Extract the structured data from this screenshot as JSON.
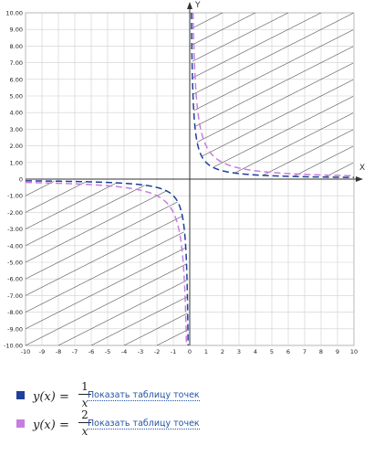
{
  "chart_data": {
    "type": "line",
    "xlabel": "X",
    "ylabel": "Y",
    "xlim": [
      -10,
      10
    ],
    "ylim": [
      -10,
      10
    ],
    "x_ticks": [
      "-10",
      "-9",
      "-8",
      "-7",
      "-6",
      "-5",
      "-4",
      "-3",
      "-2",
      "-1",
      "0",
      "1",
      "2",
      "3",
      "4",
      "5",
      "6",
      "7",
      "8",
      "9",
      "10"
    ],
    "y_ticks": [
      "10.00",
      "9.00",
      "8.00",
      "7.00",
      "6.00",
      "5.00",
      "4.00",
      "3.00",
      "2.00",
      "1.00",
      "0",
      "-1.00",
      "-2.00",
      "-3.00",
      "-4.00",
      "-5.00",
      "-6.00",
      "-7.00",
      "-8.00",
      "-9.00",
      "-10.00"
    ],
    "grid": true,
    "hatching": "diagonal lines in quadrants I and III",
    "series": [
      {
        "name": "y(x) = 1/x",
        "formula": "1/x",
        "k": 1,
        "color": "#1f3f99",
        "style": "dashed"
      },
      {
        "name": "y(x) = 2/x",
        "formula": "2/x",
        "k": 2,
        "color": "#c77de0",
        "style": "dashed"
      }
    ]
  },
  "legend": [
    {
      "lhs": "y(x) =",
      "numerator": "1",
      "denominator": "x",
      "color": "#1f3f99",
      "link": "Показать таблицу точек"
    },
    {
      "lhs": "y(x) =",
      "numerator": "2",
      "denominator": "x",
      "color": "#c77de0",
      "link": "Показать таблицу точек"
    }
  ]
}
